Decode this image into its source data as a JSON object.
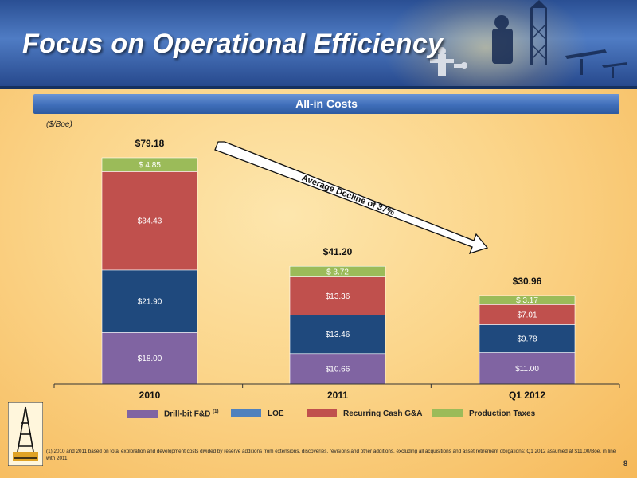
{
  "slide": {
    "title": "Focus on Operational Efficiency",
    "subtitle": "All-in Costs",
    "unit_label": "($/Boe)",
    "annotation": "Average Decline of 37%",
    "footnote": "(1) 2010 and 2011 based on total exploration and development costs divided by reserve additions from extensions, discoveries, revisions and other additions, excluding all acquisitions and asset retirement obligations; Q1 2012 assumed at $11.00/Boe, in line with 2011.",
    "page_number": "8"
  },
  "legend": [
    {
      "name": "Drill-bit F&D",
      "sup": "(1)",
      "color": "#8064a2"
    },
    {
      "name": "LOE",
      "sup": "",
      "color": "#4f81bd"
    },
    {
      "name": "Recurring Cash G&A",
      "sup": "",
      "color": "#c0504d"
    },
    {
      "name": "Production Taxes",
      "sup": "",
      "color": "#9bbb59"
    }
  ],
  "chart_data": {
    "type": "bar",
    "stacked": true,
    "categories": [
      "2010",
      "2011",
      "Q1 2012"
    ],
    "series": [
      {
        "name": "Drill-bit F&D",
        "color": "#8064a2",
        "values": [
          18.0,
          10.66,
          11.0
        ],
        "labels": [
          "$18.00",
          "$10.66",
          "$11.00"
        ]
      },
      {
        "name": "LOE",
        "color": "#1f497d",
        "values": [
          21.9,
          13.46,
          9.78
        ],
        "labels": [
          "$21.90",
          "$13.46",
          "$9.78"
        ]
      },
      {
        "name": "Recurring Cash G&A",
        "color": "#c0504d",
        "values": [
          34.43,
          13.36,
          7.01
        ],
        "labels": [
          "$34.43",
          "$13.36",
          "$7.01"
        ]
      },
      {
        "name": "Production Taxes",
        "color": "#9bbb59",
        "values": [
          4.85,
          3.72,
          3.17
        ],
        "labels": [
          "$ 4.85",
          "$ 3.72",
          "$ 3.17"
        ]
      }
    ],
    "totals": [
      79.18,
      41.2,
      30.96
    ],
    "total_labels": [
      "$79.18",
      "$41.20",
      "$30.96"
    ],
    "ylim": [
      0,
      80
    ],
    "ylabel": "($/Boe)",
    "grid": false,
    "legend_position": "bottom"
  }
}
